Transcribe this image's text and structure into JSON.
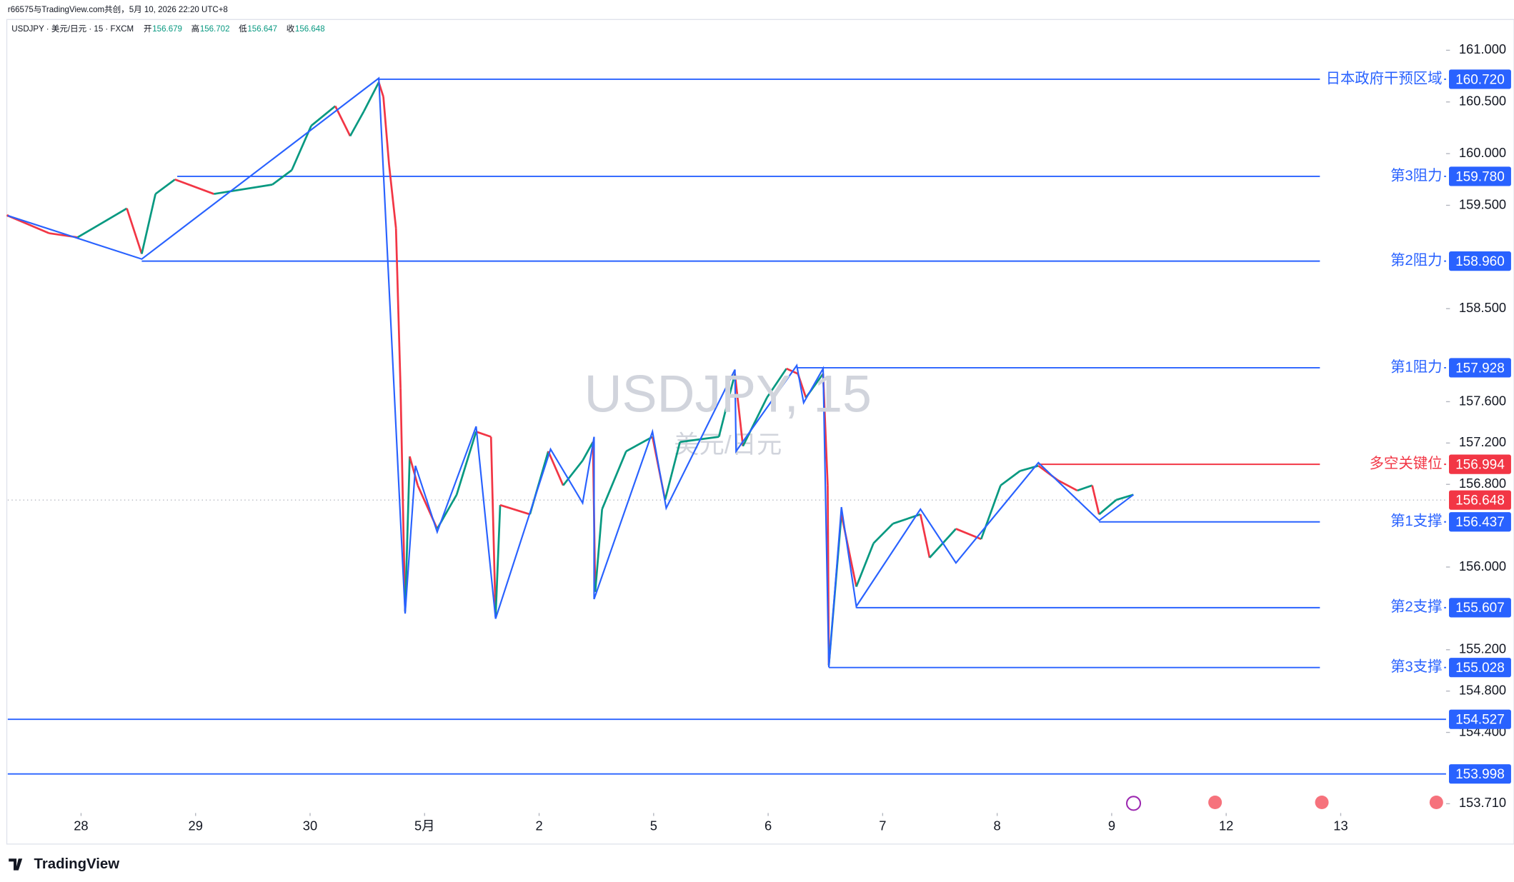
{
  "header": {
    "credit": "r66575与TradingView.com共创，5月 10, 2026 22:20 UTC+8",
    "symbol": "USDJPY · 美元/日元 · 15 · FXCM",
    "ohlc": [
      {
        "name": "开",
        "value": "156.679"
      },
      {
        "name": "高",
        "value": "156.702"
      },
      {
        "name": "低",
        "value": "156.647"
      },
      {
        "name": "收",
        "value": "156.648"
      }
    ]
  },
  "footer": {
    "brand": "TradingView"
  },
  "chart_data": {
    "type": "line",
    "title": "USDJPY, 15",
    "subtitle": "美元/日元",
    "up_color": "#089981",
    "down_color": "#f23645",
    "line_color": "#2962ff",
    "x": [
      -0.64,
      -0.28,
      -0.03,
      0.4,
      0.53,
      0.65,
      0.82,
      1.16,
      1.67,
      1.84,
      2.01,
      2.22,
      2.35,
      2.47,
      2.6,
      2.64,
      2.69,
      2.75,
      2.79,
      2.83,
      2.87,
      2.94,
      3.11,
      3.28,
      3.45,
      3.58,
      3.62,
      3.66,
      3.92,
      4.08,
      4.21,
      4.38,
      4.47,
      4.49,
      4.55,
      4.76,
      4.99,
      5.1,
      5.23,
      5.57,
      5.71,
      5.78,
      5.99,
      6.16,
      6.26,
      6.33,
      6.48,
      6.52,
      6.53,
      6.64,
      6.77,
      6.92,
      7.09,
      7.33,
      7.41,
      7.64,
      7.86,
      8.03,
      8.2,
      8.36,
      8.53,
      8.7,
      8.83,
      8.89,
      9.04,
      9.19
    ],
    "values": [
      159.4,
      159.23,
      159.19,
      159.47,
      159.03,
      159.61,
      159.75,
      159.61,
      159.7,
      159.84,
      160.27,
      160.46,
      160.17,
      160.41,
      160.69,
      160.55,
      159.89,
      159.28,
      157.73,
      155.57,
      157.07,
      156.79,
      156.37,
      156.7,
      157.31,
      157.26,
      155.52,
      156.6,
      156.51,
      157.12,
      156.79,
      157.03,
      157.21,
      155.76,
      156.56,
      157.12,
      157.26,
      156.65,
      157.21,
      157.26,
      157.87,
      157.17,
      157.64,
      157.92,
      157.87,
      157.64,
      157.87,
      156.79,
      155.05,
      156.51,
      155.81,
      156.23,
      156.42,
      156.51,
      156.09,
      156.37,
      156.27,
      156.79,
      156.93,
      156.98,
      156.84,
      156.74,
      156.79,
      156.51,
      156.65,
      156.7
    ],
    "zigzag": {
      "x": [
        -0.64,
        0.53,
        2.6,
        2.83,
        2.92,
        3.11,
        3.45,
        3.62,
        4.1,
        4.38,
        4.48,
        4.48,
        4.99,
        5.11,
        5.71,
        5.72,
        6.25,
        6.31,
        6.48,
        6.53,
        6.64,
        6.77,
        7.33,
        7.64,
        8.36,
        8.89,
        9.19
      ],
      "values": [
        159.4,
        158.98,
        160.73,
        155.55,
        156.98,
        156.34,
        157.36,
        155.5,
        157.14,
        156.62,
        157.26,
        155.69,
        157.31,
        156.57,
        157.91,
        157.12,
        157.95,
        157.59,
        157.92,
        155.03,
        156.58,
        155.62,
        156.56,
        156.04,
        157.01,
        156.45,
        156.7
      ]
    },
    "levels": [
      {
        "name": "日本政府干预区域",
        "price": 160.72,
        "price_label": "160.720",
        "start": 2.6,
        "color": "#2962ff"
      },
      {
        "name": "第3阻力",
        "price": 159.78,
        "price_label": "159.780",
        "start": 0.84,
        "color": "#2962ff"
      },
      {
        "name": "第2阻力",
        "price": 158.96,
        "price_label": "158.960",
        "start": 0.53,
        "color": "#2962ff"
      },
      {
        "name": "第1阻力",
        "price": 157.928,
        "start": 6.25,
        "color": "#2962ff"
      },
      {
        "name": "多空关键位",
        "price": 156.994,
        "start": 8.36,
        "color": "#f23645"
      },
      {
        "name": "第1支撑",
        "price": 156.437,
        "start": 8.89,
        "color": "#2962ff"
      },
      {
        "name": "第2支撑",
        "price": 155.607,
        "start": 6.77,
        "color": "#2962ff"
      },
      {
        "name": "第3支撑",
        "price": 155.028,
        "start": 6.53,
        "color": "#2962ff"
      },
      {
        "price": 154.527,
        "color": "#2962ff"
      },
      {
        "price": 153.998,
        "color": "#2962ff"
      }
    ],
    "last_price": 156.648,
    "last_color": "#f23645",
    "xlim": [
      -0.64,
      11.92
    ],
    "ylim": [
      153.62,
      161.11
    ],
    "xticks": [
      {
        "value": 0,
        "label": "28"
      },
      {
        "value": 1,
        "label": "29"
      },
      {
        "value": 2,
        "label": "30"
      },
      {
        "value": 3,
        "label": "5月"
      },
      {
        "value": 4,
        "label": "2"
      },
      {
        "value": 5,
        "label": "5"
      },
      {
        "value": 6,
        "label": "6"
      },
      {
        "value": 7,
        "label": "7"
      },
      {
        "value": 8,
        "label": "8"
      },
      {
        "value": 9,
        "label": "9"
      },
      {
        "value": 10,
        "label": "12"
      },
      {
        "value": 11,
        "label": "13"
      }
    ],
    "yticks": [
      {
        "value": 161,
        "label": "161.000"
      },
      {
        "value": 160.5,
        "label": "160.500"
      },
      {
        "value": 160,
        "label": "160.000"
      },
      {
        "value": 159.5,
        "label": "159.500"
      },
      {
        "value": 158.5,
        "label": "158.500"
      },
      {
        "value": 157.6,
        "label": "157.600"
      },
      {
        "value": 157.2,
        "label": "157.200"
      },
      {
        "value": 156.8,
        "label": "156.800"
      },
      {
        "value": 156,
        "label": "156.000"
      },
      {
        "value": 155.2,
        "label": "155.200"
      },
      {
        "value": 154.8,
        "label": "154.800"
      },
      {
        "value": 154.4,
        "label": "154.400"
      },
      {
        "value": 153.71,
        "label": "153.710"
      }
    ]
  }
}
